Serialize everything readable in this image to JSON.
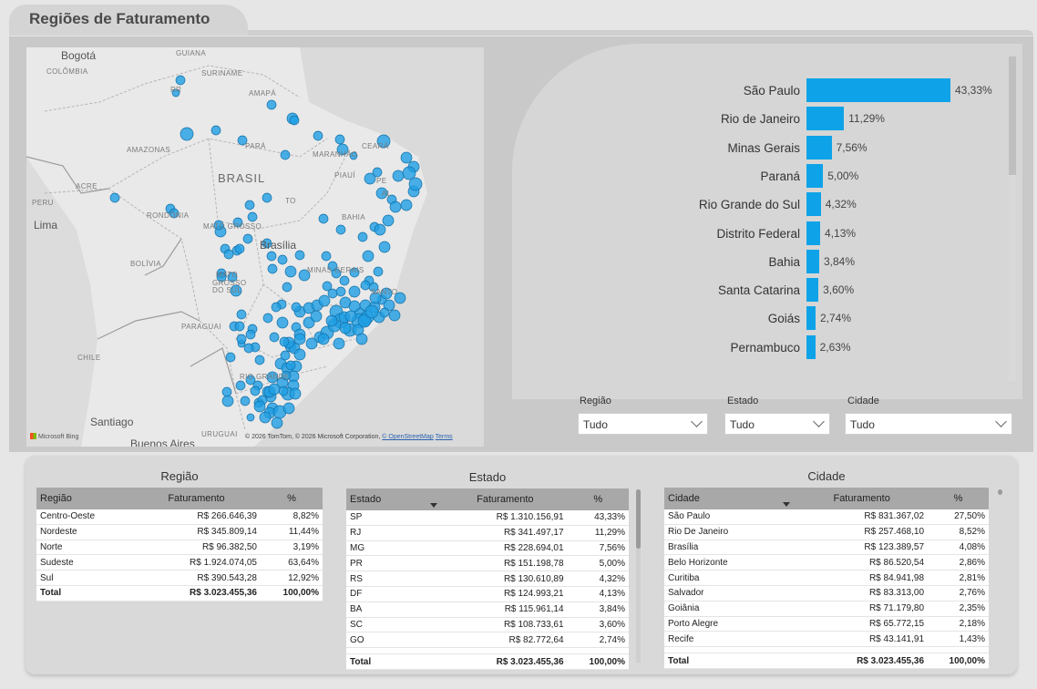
{
  "page": {
    "title": "Regiões de Faturamento"
  },
  "map": {
    "labels": {
      "bogota": "Bogotá",
      "colombia": "COLÔMBIA",
      "guiana": "GUIANA",
      "suriname": "SURINAME",
      "rr": "RR",
      "amapa": "AMAPÁ",
      "amazonas": "AMAZONAS",
      "para": "PARÁ",
      "maranhao": "MARANHÃO",
      "ceara": "CEARÁ",
      "piaui": "PIAUÍ",
      "pe": "PE",
      "al": "AL",
      "brasil": "BRASIL",
      "acre": "ACRE",
      "peru": "PERU",
      "lima": "Lima",
      "rondonia": "RONDÔNIA",
      "mato_grosso": "MATO GROSSO",
      "to": "TO",
      "bahia": "BAHIA",
      "brasilia": "Brasília",
      "bolivia": "BOLÍVIA",
      "ms1": "MATO",
      "ms2": "GROSSO",
      "ms3": "DO SUL",
      "minas": "MINAS GERAIS",
      "santo": "SANTO",
      "paraguai": "PARAGUAI",
      "chile": "CHILE",
      "rs": "RIO GRANDE",
      "santiago": "Santiago",
      "uruguai": "URUGUAI",
      "buenos": "Buenos Aires"
    },
    "attribution": "© 2026 TomTom, © 2026 Microsoft Corporation,",
    "osm_link": "© OpenStreetMap",
    "terms": "Terms",
    "bing": "Microsoft Bing"
  },
  "chart_data": {
    "type": "bar",
    "orientation": "horizontal",
    "categories": [
      "São Paulo",
      "Rio de Janeiro",
      "Minas Gerais",
      "Paraná",
      "Rio Grande do Sul",
      "Distrito Federal",
      "Bahia",
      "Santa Catarina",
      "Goiás",
      "Pernambuco"
    ],
    "values": [
      43.33,
      11.29,
      7.56,
      5.0,
      4.32,
      4.13,
      3.84,
      3.6,
      2.74,
      2.63
    ],
    "value_labels": [
      "43,33%",
      "11,29%",
      "7,56%",
      "5,00%",
      "4,32%",
      "4,13%",
      "3,84%",
      "3,60%",
      "2,74%",
      "2,63%"
    ],
    "color": "#0ea3e8",
    "xlim": [
      0,
      43.33
    ]
  },
  "slicers": [
    {
      "label": "Região",
      "value": "Tudo"
    },
    {
      "label": "Estado",
      "value": "Tudo"
    },
    {
      "label": "Cidade",
      "value": "Tudo"
    }
  ],
  "tables": {
    "regiao": {
      "title": "Região",
      "columns": [
        "Região",
        "Faturamento",
        "%"
      ],
      "rows": [
        [
          "Centro-Oeste",
          "R$ 266.646,39",
          "8,82%"
        ],
        [
          "Nordeste",
          "R$ 345.809,14",
          "11,44%"
        ],
        [
          "Norte",
          "R$ 96.382,50",
          "3,19%"
        ],
        [
          "Sudeste",
          "R$ 1.924.074,05",
          "63,64%"
        ],
        [
          "Sul",
          "R$ 390.543,28",
          "12,92%"
        ]
      ],
      "total": [
        "Total",
        "R$ 3.023.455,36",
        "100,00%"
      ]
    },
    "estado": {
      "title": "Estado",
      "columns": [
        "Estado",
        "Faturamento",
        "%"
      ],
      "rows": [
        [
          "SP",
          "R$ 1.310.156,91",
          "43,33%"
        ],
        [
          "RJ",
          "R$ 341.497,17",
          "11,29%"
        ],
        [
          "MG",
          "R$ 228.694,01",
          "7,56%"
        ],
        [
          "PR",
          "R$ 151.198,78",
          "5,00%"
        ],
        [
          "RS",
          "R$ 130.610,89",
          "4,32%"
        ],
        [
          "DF",
          "R$ 124.993,21",
          "4,13%"
        ],
        [
          "BA",
          "R$ 115.961,14",
          "3,84%"
        ],
        [
          "SC",
          "R$ 108.733,61",
          "3,60%"
        ],
        [
          "GO",
          "R$ 82.772,64",
          "2,74%"
        ]
      ],
      "total": [
        "Total",
        "R$ 3.023.455,36",
        "100,00%"
      ]
    },
    "cidade": {
      "title": "Cidade",
      "columns": [
        "Cidade",
        "Faturamento",
        "%"
      ],
      "rows": [
        [
          "São Paulo",
          "R$ 831.367,02",
          "27,50%"
        ],
        [
          "Rio De Janeiro",
          "R$ 257.468,10",
          "8,52%"
        ],
        [
          "Brasília",
          "R$ 123.389,57",
          "4,08%"
        ],
        [
          "Belo Horizonte",
          "R$ 86.520,54",
          "2,86%"
        ],
        [
          "Curitiba",
          "R$ 84.941,98",
          "2,81%"
        ],
        [
          "Salvador",
          "R$ 83.313,00",
          "2,76%"
        ],
        [
          "Goiânia",
          "R$ 71.179,80",
          "2,35%"
        ],
        [
          "Porto Alegre",
          "R$ 65.772,15",
          "2,18%"
        ],
        [
          "Recife",
          "R$ 43.141,91",
          "1,43%"
        ]
      ],
      "total": [
        "Total",
        "R$ 3.023.455,36",
        "100,00%"
      ]
    }
  }
}
